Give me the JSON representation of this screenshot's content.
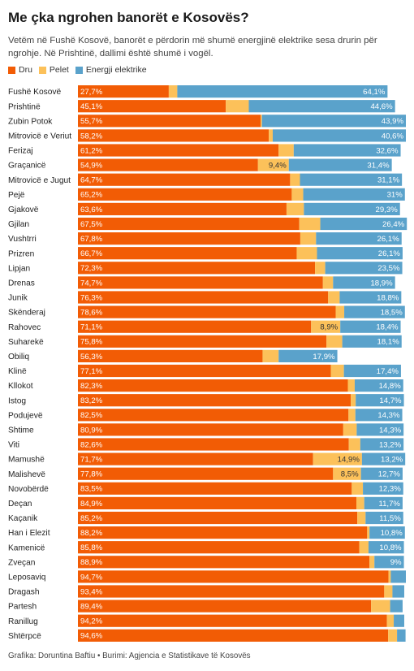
{
  "title": "Me çka ngrohen banorët e Kosovës?",
  "subtitle": "Vetëm në Fushë Kosovë, banorët e përdorin më shumë energjinë elektrike sesa drurin për ngrohje. Në Prishtinë, dallimi është shumë i vogël.",
  "footer": "Grafika: Doruntina Baftiu • Burimi: Agjencia e Statistikave të Kosovës",
  "colors": {
    "dru": "#f25c05",
    "pelet": "#fcc15a",
    "energji": "#5aa2cb"
  },
  "chart_data": {
    "type": "bar",
    "orientation": "horizontal",
    "stacked": true,
    "xlim": [
      0,
      100
    ],
    "legend_position": "top-left",
    "categories": [
      "Fushë Kosovë",
      "Prishtinë",
      "Zubin Potok",
      "Mitrovicë e Veriut",
      "Ferizaj",
      "Graçanicë",
      "Mitrovicë e Jugut",
      "Pejë",
      "Gjakovë",
      "Gjilan",
      "Vushtrri",
      "Prizren",
      "Lipjan",
      "Drenas",
      "Junik",
      "Skënderaj",
      "Rahovec",
      "Suharekë",
      "Obiliq",
      "Klinë",
      "Kllokot",
      "Istog",
      "Podujevë",
      "Shtime",
      "Viti",
      "Mamushë",
      "Malishevë",
      "Novobërdë",
      "Deçan",
      "Kaçanik",
      "Han i Elezit",
      "Kamenicë",
      "Zveçan",
      "Leposaviq",
      "Dragash",
      "Partesh",
      "Ranillug",
      "Shtërpcë"
    ],
    "series": [
      {
        "name": "Dru",
        "values": [
          27.7,
          45.1,
          55.7,
          58.2,
          61.2,
          54.9,
          64.7,
          65.2,
          63.6,
          67.5,
          67.8,
          66.7,
          72.3,
          74.7,
          76.3,
          78.6,
          71.1,
          75.8,
          56.3,
          77.1,
          82.3,
          83.2,
          82.5,
          80.9,
          82.6,
          71.7,
          77.8,
          83.5,
          84.9,
          85.2,
          88.2,
          85.8,
          88.9,
          94.7,
          93.4,
          89.4,
          94.2,
          94.6
        ],
        "labels": [
          "27,7%",
          "45,1%",
          "55,7%",
          "58,2%",
          "61,2%",
          "54,9%",
          "64,7%",
          "65,2%",
          "63,6%",
          "67,5%",
          "67,8%",
          "66,7%",
          "72,3%",
          "74,7%",
          "76,3%",
          "78,6%",
          "71,1%",
          "75,8%",
          "56,3%",
          "77,1%",
          "82,3%",
          "83,2%",
          "82,5%",
          "80,9%",
          "82,6%",
          "71,7%",
          "77,8%",
          "83,5%",
          "84,9%",
          "85,2%",
          "88,2%",
          "85,8%",
          "88,9%",
          "94,7%",
          "93,4%",
          "89,4%",
          "94,2%",
          "94,6%"
        ]
      },
      {
        "name": "Pelet",
        "values": [
          2.6,
          7.0,
          0.4,
          1.2,
          4.6,
          9.4,
          3.0,
          3.5,
          5.3,
          6.4,
          4.8,
          6.2,
          3.1,
          3.1,
          3.5,
          2.6,
          8.9,
          4.8,
          4.9,
          4.0,
          2.1,
          1.5,
          2.1,
          4.1,
          3.5,
          14.9,
          8.5,
          3.4,
          2.4,
          2.5,
          0.7,
          2.8,
          1.5,
          0.7,
          2.5,
          5.8,
          2.1,
          2.7
        ],
        "labels": [
          "",
          "",
          "",
          "",
          "",
          "9,4%",
          "",
          "",
          "",
          "",
          "",
          "",
          "",
          "",
          "",
          "",
          "8,9%",
          "",
          "",
          "",
          "",
          "",
          "",
          "",
          "",
          "14,9%",
          "8,5%",
          "",
          "",
          "",
          "",
          "",
          "",
          "",
          "",
          "",
          "",
          ""
        ]
      },
      {
        "name": "Energji elektrike",
        "values": [
          64.1,
          44.6,
          43.9,
          40.6,
          32.6,
          31.4,
          31.1,
          31.0,
          29.3,
          26.4,
          26.1,
          26.1,
          23.5,
          18.9,
          18.8,
          18.5,
          18.4,
          18.1,
          17.9,
          17.4,
          14.8,
          14.7,
          14.3,
          14.3,
          13.2,
          13.2,
          12.7,
          12.3,
          11.7,
          11.5,
          10.8,
          10.8,
          9.0,
          4.6,
          3.6,
          3.8,
          3.2,
          2.6
        ],
        "labels": [
          "64,1%",
          "44,6%",
          "43,9%",
          "40,6%",
          "32,6%",
          "31,4%",
          "31,1%",
          "31%",
          "29,3%",
          "26,4%",
          "26,1%",
          "26,1%",
          "23,5%",
          "18,9%",
          "18,8%",
          "18,5%",
          "18,4%",
          "18,1%",
          "17,9%",
          "17,4%",
          "14,8%",
          "14,7%",
          "14,3%",
          "14,3%",
          "13,2%",
          "13,2%",
          "12,7%",
          "12,3%",
          "11,7%",
          "11,5%",
          "10,8%",
          "10,8%",
          "9%",
          "",
          "",
          "",
          "",
          ""
        ]
      }
    ]
  }
}
